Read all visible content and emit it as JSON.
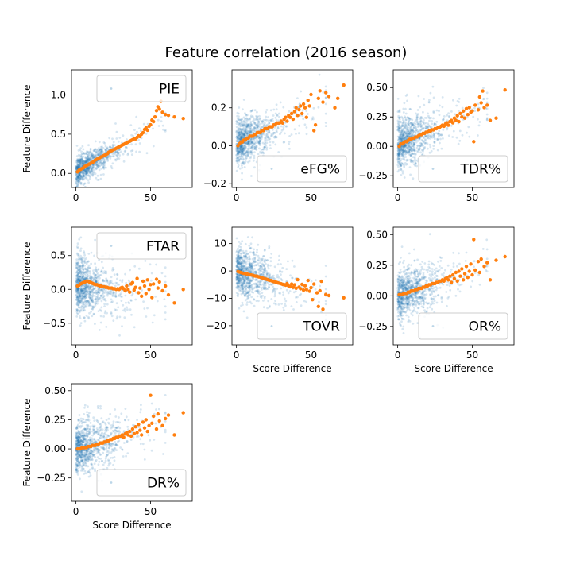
{
  "title": "Feature correlation (2016 season)",
  "colors": {
    "scatter": "#1f77b4",
    "binned": "#ff7f0e",
    "axis": "#000000"
  },
  "chart_data": [
    {
      "type": "scatter",
      "legend": "PIE",
      "legend_loc": "top-right",
      "ylabel": "Feature Difference",
      "xlabel": "",
      "xlim": [
        -3,
        78
      ],
      "ylim": [
        -0.18,
        1.32
      ],
      "xticks": [
        0,
        50
      ],
      "yticks": [
        0.0,
        0.5,
        1.0
      ],
      "ytick_labels": [
        "0.0",
        "0.5",
        "1.0"
      ],
      "cloud": {
        "slope": 0.0105,
        "intercept": 0.02,
        "spread": 0.09
      },
      "series": [
        {
          "name": "binned mean",
          "x": [
            1,
            2,
            3,
            4,
            5,
            6,
            7,
            8,
            9,
            10,
            11,
            12,
            13,
            14,
            15,
            16,
            17,
            18,
            19,
            20,
            21,
            22,
            23,
            24,
            25,
            26,
            27,
            28,
            29,
            30,
            31,
            32,
            33,
            34,
            35,
            36,
            37,
            38,
            39,
            40,
            41,
            42,
            43,
            44,
            45,
            46,
            47,
            48,
            49,
            50,
            51,
            52,
            53,
            54,
            55,
            56,
            57,
            58,
            60,
            62,
            66,
            72
          ],
          "y": [
            0.02,
            0.04,
            0.05,
            0.06,
            0.07,
            0.09,
            0.1,
            0.11,
            0.12,
            0.13,
            0.14,
            0.15,
            0.17,
            0.18,
            0.19,
            0.2,
            0.21,
            0.22,
            0.23,
            0.24,
            0.25,
            0.27,
            0.28,
            0.29,
            0.3,
            0.31,
            0.32,
            0.33,
            0.34,
            0.35,
            0.36,
            0.37,
            0.38,
            0.39,
            0.4,
            0.41,
            0.42,
            0.43,
            0.44,
            0.44,
            0.46,
            0.48,
            0.47,
            0.5,
            0.52,
            0.56,
            0.58,
            0.55,
            0.6,
            0.62,
            0.68,
            0.66,
            0.72,
            0.8,
            0.85,
            0.82,
            0.92,
            0.78,
            0.75,
            0.74,
            0.72,
            0.7
          ]
        }
      ]
    },
    {
      "type": "scatter",
      "legend": "eFG%",
      "legend_loc": "bottom-right",
      "ylabel": "",
      "xlabel": "",
      "xlim": [
        -3,
        78
      ],
      "ylim": [
        -0.22,
        0.4
      ],
      "xticks": [
        0,
        50
      ],
      "yticks": [
        -0.2,
        0.0,
        0.2
      ],
      "ytick_labels": [
        "−0.2",
        "0.0",
        "0.2"
      ],
      "cloud": {
        "slope": 0.0032,
        "intercept": 0.01,
        "spread": 0.06
      },
      "series": [
        {
          "name": "binned mean",
          "x": [
            1,
            2,
            3,
            4,
            5,
            6,
            7,
            8,
            9,
            10,
            11,
            12,
            13,
            14,
            15,
            16,
            17,
            18,
            19,
            20,
            21,
            22,
            23,
            24,
            25,
            26,
            27,
            28,
            29,
            30,
            31,
            32,
            33,
            34,
            35,
            36,
            37,
            38,
            39,
            40,
            41,
            42,
            43,
            44,
            45,
            46,
            47,
            48,
            49,
            50,
            52,
            53,
            55,
            56,
            58,
            60,
            62,
            66,
            68,
            72
          ],
          "y": [
            0.0,
            0.01,
            0.02,
            0.02,
            0.03,
            0.03,
            0.04,
            0.04,
            0.05,
            0.05,
            0.05,
            0.06,
            0.06,
            0.07,
            0.07,
            0.07,
            0.08,
            0.08,
            0.09,
            0.09,
            0.09,
            0.1,
            0.1,
            0.1,
            0.11,
            0.11,
            0.12,
            0.12,
            0.12,
            0.13,
            0.12,
            0.14,
            0.15,
            0.13,
            0.16,
            0.15,
            0.17,
            0.14,
            0.18,
            0.2,
            0.16,
            0.19,
            0.21,
            0.17,
            0.22,
            0.2,
            0.15,
            0.24,
            0.21,
            0.27,
            0.08,
            0.11,
            0.25,
            0.29,
            0.23,
            0.28,
            0.26,
            0.2,
            0.25,
            0.32
          ]
        }
      ]
    },
    {
      "type": "scatter",
      "legend": "TDR%",
      "legend_loc": "bottom-right",
      "ylabel": "",
      "xlabel": "",
      "xlim": [
        -3,
        78
      ],
      "ylim": [
        -0.35,
        0.65
      ],
      "xticks": [
        0,
        50
      ],
      "yticks": [
        -0.25,
        0.0,
        0.25,
        0.5
      ],
      "ytick_labels": [
        "−0.25",
        "0.00",
        "0.25",
        "0.50"
      ],
      "cloud": {
        "slope": 0.0045,
        "intercept": 0.02,
        "spread": 0.11
      },
      "series": [
        {
          "name": "binned mean",
          "x": [
            1,
            2,
            3,
            4,
            5,
            6,
            7,
            8,
            9,
            10,
            11,
            12,
            13,
            14,
            15,
            16,
            17,
            18,
            19,
            20,
            21,
            22,
            23,
            24,
            25,
            26,
            27,
            28,
            29,
            30,
            31,
            32,
            33,
            34,
            35,
            36,
            37,
            38,
            39,
            40,
            41,
            42,
            43,
            44,
            45,
            46,
            47,
            48,
            49,
            50,
            51,
            52,
            54,
            55,
            56,
            57,
            58,
            60,
            62,
            66,
            72
          ],
          "y": [
            0.0,
            0.02,
            0.02,
            0.03,
            0.04,
            0.04,
            0.05,
            0.06,
            0.06,
            0.07,
            0.07,
            0.08,
            0.08,
            0.09,
            0.1,
            0.1,
            0.11,
            0.11,
            0.12,
            0.12,
            0.13,
            0.13,
            0.14,
            0.14,
            0.15,
            0.15,
            0.16,
            0.16,
            0.17,
            0.18,
            0.17,
            0.19,
            0.2,
            0.18,
            0.21,
            0.22,
            0.2,
            0.24,
            0.22,
            0.26,
            0.21,
            0.28,
            0.25,
            0.3,
            0.24,
            0.32,
            0.27,
            0.33,
            0.29,
            0.3,
            0.04,
            0.35,
            0.31,
            0.42,
            0.37,
            0.47,
            0.33,
            0.35,
            0.22,
            0.24,
            0.48
          ]
        }
      ]
    },
    {
      "type": "scatter",
      "legend": "FTAR",
      "legend_loc": "top-right",
      "ylabel": "Feature Difference",
      "xlabel": "",
      "xlim": [
        -3,
        78
      ],
      "ylim": [
        -0.82,
        0.92
      ],
      "xticks": [
        0,
        50
      ],
      "yticks": [
        -0.5,
        0.0,
        0.5
      ],
      "ytick_labels": [
        "−0.5",
        "0.0",
        "0.5"
      ],
      "cloud": {
        "slope": -0.002,
        "intercept": 0.06,
        "spread": 0.22
      },
      "series": [
        {
          "name": "binned mean",
          "x": [
            1,
            2,
            3,
            4,
            5,
            6,
            7,
            8,
            9,
            10,
            11,
            12,
            13,
            14,
            15,
            16,
            17,
            18,
            19,
            20,
            21,
            22,
            23,
            24,
            25,
            26,
            27,
            28,
            29,
            30,
            31,
            32,
            33,
            34,
            35,
            36,
            37,
            38,
            39,
            40,
            41,
            42,
            43,
            44,
            45,
            46,
            47,
            48,
            49,
            50,
            51,
            52,
            54,
            55,
            56,
            58,
            60,
            62,
            66,
            72
          ],
          "y": [
            0.05,
            0.06,
            0.08,
            0.09,
            0.1,
            0.11,
            0.12,
            0.12,
            0.11,
            0.1,
            0.09,
            0.08,
            0.07,
            0.07,
            0.06,
            0.05,
            0.05,
            0.04,
            0.04,
            0.03,
            0.03,
            0.02,
            0.02,
            0.02,
            0.01,
            0.01,
            0.0,
            0.01,
            0.0,
            0.02,
            0.03,
            0.01,
            -0.02,
            0.05,
            0.0,
            -0.04,
            0.08,
            0.1,
            -0.01,
            0.03,
            0.16,
            -0.05,
            0.02,
            -0.1,
            0.12,
            0.05,
            -0.06,
            0.14,
            0.0,
            0.07,
            -0.12,
            0.08,
            0.15,
            0.02,
            0.11,
            -0.02,
            0.05,
            -0.08,
            -0.2,
            0.0
          ]
        }
      ]
    },
    {
      "type": "scatter",
      "legend": "TOVR",
      "legend_loc": "bottom-right",
      "ylabel": "",
      "xlabel": "Score Difference",
      "xlim": [
        -3,
        78
      ],
      "ylim": [
        -27,
        16
      ],
      "xticks": [
        0,
        50
      ],
      "yticks": [
        -20,
        -10,
        0,
        10
      ],
      "ytick_labels": [
        "−20",
        "−10",
        "0",
        "10"
      ],
      "cloud": {
        "slope": -0.14,
        "intercept": 0.0,
        "spread": 4.5
      },
      "series": [
        {
          "name": "binned mean",
          "x": [
            1,
            2,
            3,
            4,
            5,
            6,
            7,
            8,
            9,
            10,
            11,
            12,
            13,
            14,
            15,
            16,
            17,
            18,
            19,
            20,
            21,
            22,
            23,
            24,
            25,
            26,
            27,
            28,
            29,
            30,
            31,
            32,
            33,
            34,
            35,
            36,
            37,
            38,
            39,
            40,
            41,
            42,
            43,
            44,
            45,
            46,
            47,
            48,
            49,
            50,
            51,
            52,
            54,
            55,
            56,
            57,
            58,
            60,
            62,
            72
          ],
          "y": [
            -0.2,
            -0.4,
            -0.6,
            -0.8,
            -0.9,
            -1.0,
            -1.1,
            -1.3,
            -1.4,
            -1.5,
            -1.6,
            -1.8,
            -1.9,
            -2.0,
            -2.2,
            -2.3,
            -2.5,
            -2.7,
            -2.9,
            -3.0,
            -3.2,
            -3.4,
            -3.5,
            -3.7,
            -3.9,
            -4.0,
            -4.2,
            -4.4,
            -4.5,
            -4.7,
            -4.9,
            -5.0,
            -5.2,
            -4.6,
            -5.5,
            -5.8,
            -4.8,
            -6.0,
            -5.1,
            -6.3,
            -3.2,
            -5.9,
            -6.5,
            -4.9,
            -7.0,
            -5.4,
            -6.8,
            -3.5,
            -7.4,
            -6.1,
            -10.5,
            -4.8,
            -8.0,
            -13.0,
            -7.2,
            -3.8,
            -14.0,
            -8.6,
            -9.0,
            -9.8
          ]
        }
      ]
    },
    {
      "type": "scatter",
      "legend": "OR%",
      "legend_loc": "bottom-right",
      "ylabel": "",
      "xlabel": "Score Difference",
      "xlim": [
        -3,
        78
      ],
      "ylim": [
        -0.4,
        0.56
      ],
      "xticks": [
        0,
        50
      ],
      "yticks": [
        -0.25,
        0.0,
        0.25,
        0.5
      ],
      "ytick_labels": [
        "−0.25",
        "0.00",
        "0.25",
        "0.50"
      ],
      "cloud": {
        "slope": 0.0035,
        "intercept": 0.01,
        "spread": 0.1
      },
      "series": [
        {
          "name": "binned mean",
          "x": [
            1,
            2,
            3,
            4,
            5,
            6,
            7,
            8,
            9,
            10,
            11,
            12,
            13,
            14,
            15,
            16,
            17,
            18,
            19,
            20,
            21,
            22,
            23,
            24,
            25,
            26,
            27,
            28,
            29,
            30,
            31,
            32,
            33,
            34,
            35,
            36,
            37,
            38,
            39,
            40,
            41,
            42,
            43,
            44,
            45,
            46,
            47,
            48,
            49,
            50,
            51,
            52,
            54,
            55,
            56,
            58,
            60,
            62,
            66,
            72
          ],
          "y": [
            0.01,
            0.01,
            0.01,
            0.02,
            0.02,
            0.02,
            0.03,
            0.03,
            0.04,
            0.04,
            0.04,
            0.05,
            0.05,
            0.06,
            0.06,
            0.06,
            0.07,
            0.07,
            0.08,
            0.08,
            0.09,
            0.09,
            0.1,
            0.1,
            0.1,
            0.11,
            0.11,
            0.12,
            0.12,
            0.13,
            0.12,
            0.14,
            0.15,
            0.13,
            0.16,
            0.11,
            0.17,
            0.14,
            0.19,
            0.12,
            0.2,
            0.16,
            0.22,
            0.13,
            0.18,
            0.24,
            0.15,
            0.2,
            0.26,
            0.17,
            0.46,
            0.21,
            0.28,
            0.19,
            0.3,
            0.24,
            0.27,
            0.13,
            0.29,
            0.32
          ]
        }
      ]
    },
    {
      "type": "scatter",
      "legend": "DR%",
      "legend_loc": "bottom-right",
      "ylabel": "Feature Difference",
      "xlabel": "Score Difference",
      "xlim": [
        -3,
        78
      ],
      "ylim": [
        -0.45,
        0.56
      ],
      "xticks": [
        0,
        50
      ],
      "yticks": [
        -0.25,
        0.0,
        0.25,
        0.5
      ],
      "ytick_labels": [
        "−0.25",
        "0.00",
        "0.25",
        "0.50"
      ],
      "cloud": {
        "slope": 0.0035,
        "intercept": 0.0,
        "spread": 0.11
      },
      "series": [
        {
          "name": "binned mean",
          "x": [
            1,
            2,
            3,
            4,
            5,
            6,
            7,
            8,
            9,
            10,
            11,
            12,
            13,
            14,
            15,
            16,
            17,
            18,
            19,
            20,
            21,
            22,
            23,
            24,
            25,
            26,
            27,
            28,
            29,
            30,
            31,
            32,
            33,
            34,
            35,
            36,
            37,
            38,
            39,
            40,
            41,
            42,
            43,
            44,
            45,
            46,
            47,
            48,
            49,
            50,
            51,
            52,
            54,
            55,
            56,
            58,
            60,
            62,
            66,
            72
          ],
          "y": [
            0.0,
            0.0,
            0.0,
            0.01,
            0.01,
            0.01,
            0.01,
            0.02,
            0.02,
            0.02,
            0.03,
            0.03,
            0.03,
            0.04,
            0.04,
            0.05,
            0.05,
            0.05,
            0.06,
            0.06,
            0.07,
            0.07,
            0.08,
            0.08,
            0.09,
            0.09,
            0.1,
            0.1,
            0.11,
            0.11,
            0.12,
            0.1,
            0.13,
            0.14,
            0.12,
            0.15,
            0.11,
            0.17,
            0.13,
            0.19,
            0.14,
            0.21,
            0.16,
            0.12,
            0.23,
            0.18,
            0.25,
            0.15,
            0.2,
            0.46,
            0.22,
            0.28,
            0.17,
            0.3,
            0.24,
            0.2,
            0.26,
            0.29,
            0.12,
            0.31
          ]
        }
      ]
    }
  ]
}
